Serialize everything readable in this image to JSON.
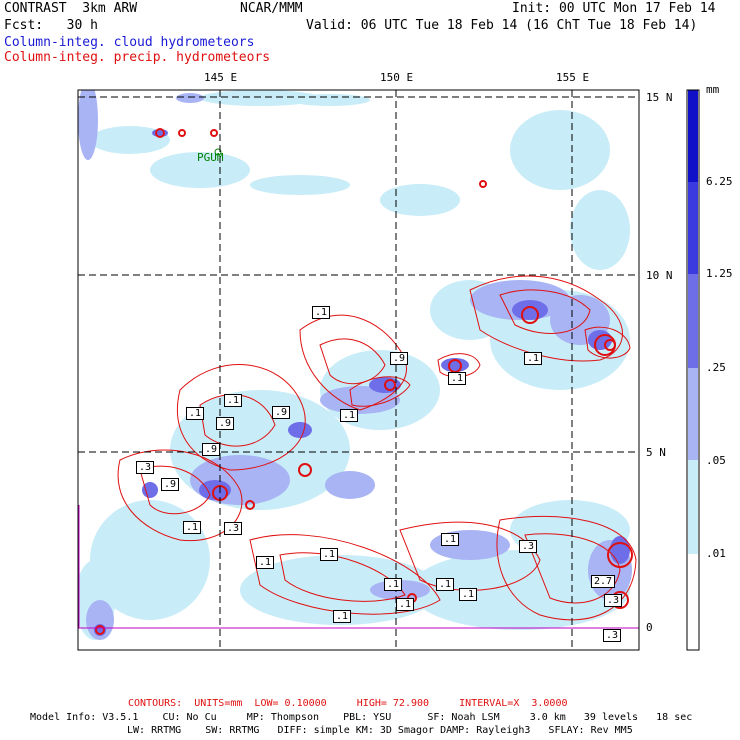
{
  "header": {
    "model": "CONTRAST  3km ARW",
    "center": "NCAR/MMM",
    "init": "Init: 00 UTC Mon 17 Feb 14",
    "fcst": "Fcst:   30 h",
    "valid": "Valid: 06 UTC Tue 18 Feb 14 (16 ChT Tue 18 Feb 14)",
    "field1": "Column-integ. cloud hydrometeors",
    "field2": "Column-integ. precip. hydrometeors"
  },
  "axes": {
    "lon_labels": [
      "145 E",
      "150 E",
      "155 E"
    ],
    "lat_labels": [
      "15 N",
      "10 N",
      "5 N",
      "0"
    ]
  },
  "station": "PGUM",
  "legend": {
    "unit": "mm",
    "labels": [
      "6.25",
      "1.25",
      ".25",
      ".05",
      ".01"
    ],
    "colors": [
      "#1010c8",
      "#3a3ae0",
      "#6e6ee8",
      "#a8b4f4",
      "#c8ecf8",
      "#ffffff"
    ]
  },
  "contour_labels": [
    ".1",
    ".9",
    ".1",
    ".1",
    ".9",
    ".9",
    ".1",
    ".1",
    ".9",
    ".3",
    ".9",
    ".1",
    ".3",
    ".1",
    ".1",
    ".1",
    ".1",
    ".1",
    ".1",
    ".1",
    ".3",
    ".1",
    "2.7",
    ".3",
    ".3",
    ".1"
  ],
  "footer": {
    "contours": "CONTOURS:  UNITS=mm  LOW= 0.10000     HIGH= 72.900     INTERVAL=X  3.0000",
    "model_line1": "Model Info: V3.5.1    CU: No Cu     MP: Thompson    PBL: YSU      SF: Noah LSM     3.0 km   39 levels   18 sec",
    "model_line2": "LW: RRTMG    SW: RRTMG   DIFF: simple KM: 3D Smagor DAMP: Rayleigh3   SFLAY: Rev MM5"
  }
}
